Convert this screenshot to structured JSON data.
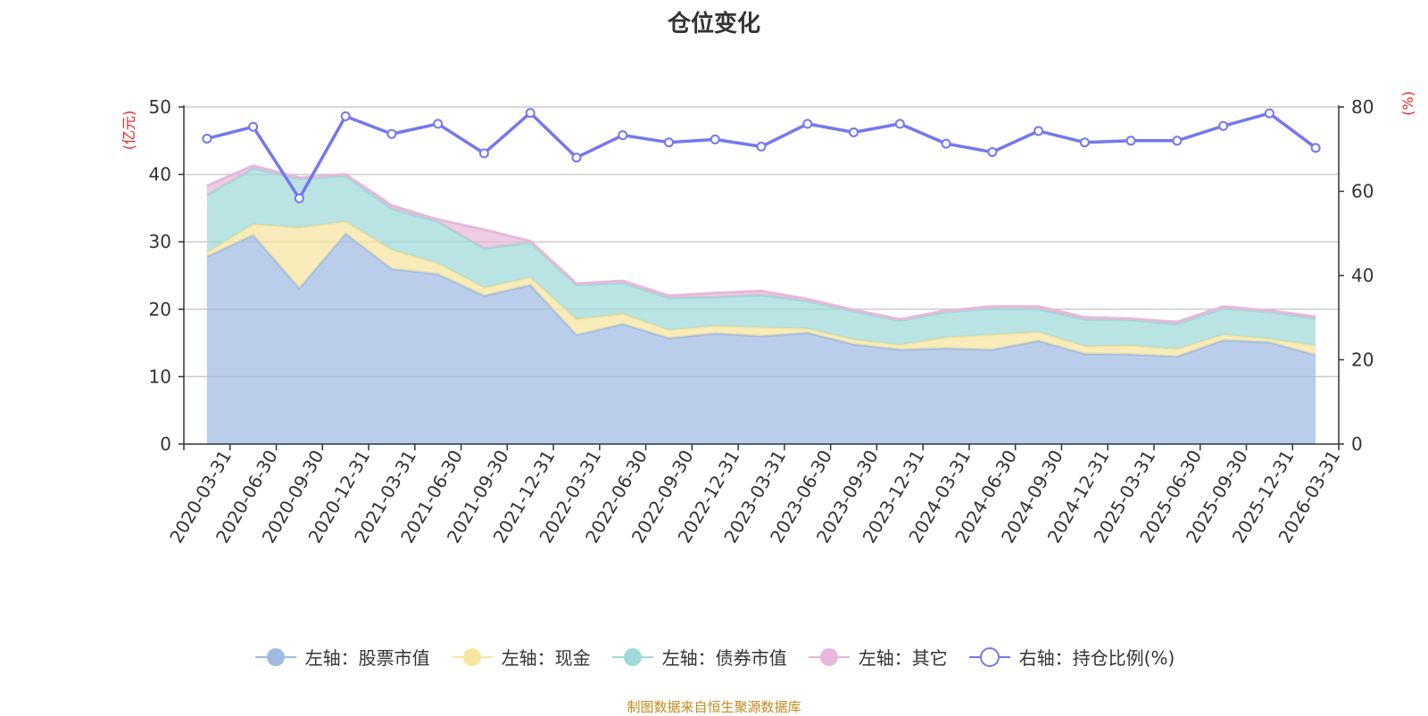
{
  "title": "仓位变化",
  "source": "制图数据来自恒生聚源数据库",
  "axes": {
    "left_unit": "(亿元)",
    "right_unit": "(%)"
  },
  "colors": {
    "stock": "#9fbbe4",
    "cash": "#f7e5a0",
    "bond": "#9fd9d9",
    "other": "#e7b8da",
    "ratio": "#7378ef",
    "unit": "#e8251f",
    "source": "#c08a1e"
  },
  "legend": [
    {
      "label": "左轴：股票市值",
      "key": "stock",
      "marker": "filled"
    },
    {
      "label": "左轴：现金",
      "key": "cash",
      "marker": "filled"
    },
    {
      "label": "左轴：债券市值",
      "key": "bond",
      "marker": "filled"
    },
    {
      "label": "左轴：其它",
      "key": "other",
      "marker": "filled"
    },
    {
      "label": "右轴：持仓比例(%)",
      "key": "ratio",
      "marker": "hollow"
    }
  ],
  "chart_data": {
    "type": "area",
    "title": "仓位变化",
    "stacked": true,
    "categories": [
      "2020-03-31",
      "2020-06-30",
      "2020-09-30",
      "2020-12-31",
      "2021-03-31",
      "2021-06-30",
      "2021-09-30",
      "2021-12-31",
      "2022-03-31",
      "2022-06-30",
      "2022-09-30",
      "2022-12-31",
      "2023-03-31",
      "2023-06-30",
      "2023-09-30",
      "2023-12-31",
      "2024-03-31",
      "2024-06-30",
      "2024-09-30",
      "2024-12-31",
      "2025-03-31",
      "2025-06-30",
      "2025-09-30",
      "2025-12-31",
      "2026-03-31"
    ],
    "series": [
      {
        "name": "左轴：股票市值",
        "axis": "left",
        "values": [
          27.8,
          31.0,
          23.1,
          31.2,
          26.0,
          25.2,
          22.0,
          23.6,
          16.2,
          17.8,
          15.7,
          16.4,
          16.0,
          16.5,
          14.8,
          14.0,
          14.2,
          14.0,
          15.3,
          13.4,
          13.3,
          13.0,
          15.4,
          15.1,
          13.2
        ]
      },
      {
        "name": "左轴：现金",
        "axis": "left",
        "values": [
          0.6,
          1.6,
          9.0,
          1.8,
          2.8,
          1.6,
          1.2,
          1.1,
          2.3,
          1.5,
          1.2,
          1.1,
          1.3,
          0.6,
          0.7,
          0.7,
          1.6,
          2.2,
          1.3,
          1.1,
          1.3,
          1.1,
          0.8,
          0.5,
          1.4
        ]
      },
      {
        "name": "左轴：债券市值",
        "axis": "left",
        "values": [
          8.5,
          8.3,
          7.2,
          6.8,
          6.1,
          6.2,
          5.8,
          5.2,
          5.1,
          4.6,
          4.8,
          4.3,
          4.8,
          4.1,
          4.2,
          3.6,
          3.8,
          3.9,
          3.4,
          4.0,
          3.8,
          3.7,
          3.9,
          4.0,
          4.0
        ]
      },
      {
        "name": "左轴：其它",
        "axis": "left",
        "values": [
          1.4,
          0.4,
          0.2,
          0.2,
          0.5,
          0.3,
          2.8,
          0.2,
          0.2,
          0.3,
          0.3,
          0.6,
          0.6,
          0.3,
          0.2,
          0.2,
          0.2,
          0.3,
          0.4,
          0.3,
          0.2,
          0.3,
          0.3,
          0.2,
          0.3
        ]
      },
      {
        "name": "右轴：持仓比例(%)",
        "axis": "right",
        "values": [
          72.5,
          75.3,
          58.3,
          77.8,
          73.6,
          76.0,
          69.0,
          78.6,
          68.0,
          73.3,
          71.6,
          72.3,
          70.6,
          76.0,
          74.0,
          76.0,
          71.3,
          69.3,
          74.3,
          71.6,
          72.0,
          72.0,
          75.5,
          78.5,
          70.3
        ]
      }
    ],
    "ylim_left": [
      0,
      50
    ],
    "ylim_right": [
      0,
      80
    ],
    "yticks_left": [
      0,
      10,
      20,
      30,
      40,
      50
    ],
    "yticks_right": [
      0,
      20,
      40,
      60,
      80
    ],
    "ylabel_left": "(亿元)",
    "ylabel_right": "(%)",
    "xlabel": "",
    "grid": true,
    "legend_position": "bottom"
  }
}
